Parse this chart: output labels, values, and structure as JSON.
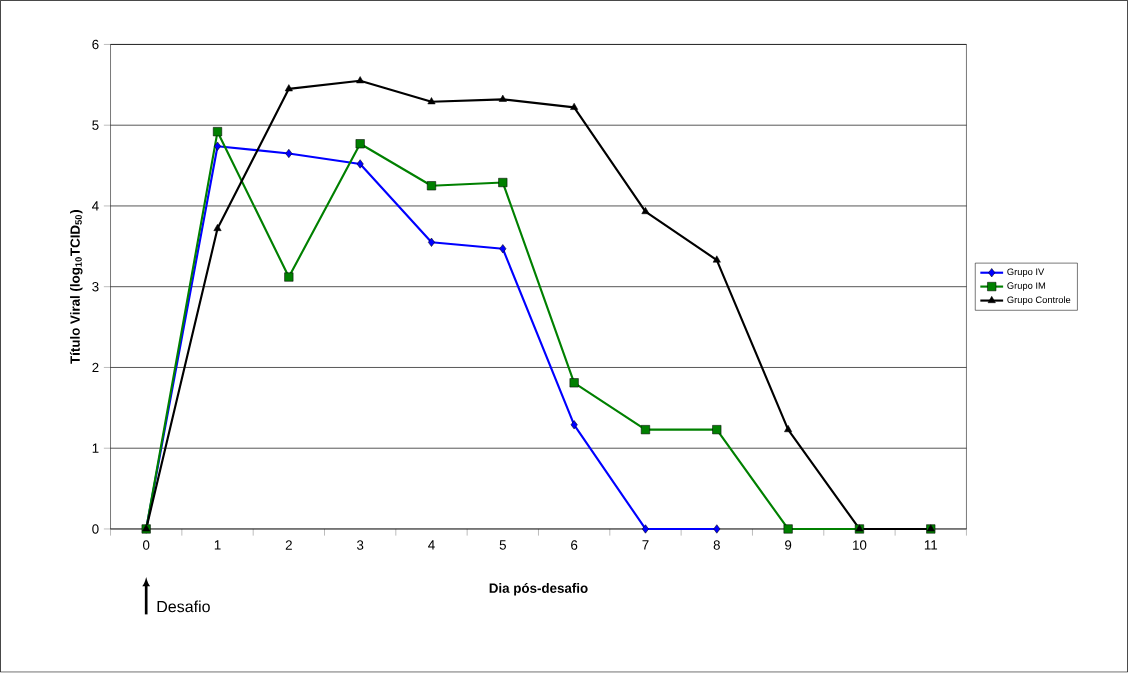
{
  "chart_data": {
    "type": "line",
    "xlabel": "Dia pós-desafio",
    "ylabel": "Título Viral (log$_{10}$TCID$_{50}$)",
    "categories": [
      "0",
      "1",
      "2",
      "3",
      "4",
      "5",
      "6",
      "7",
      "8",
      "9",
      "10",
      "11"
    ],
    "series": [
      {
        "name": "Grupo IV",
        "color": "#0000ff",
        "marker": "diamond",
        "values": [
          0,
          4.74,
          4.65,
          4.52,
          3.55,
          3.47,
          1.29,
          0,
          0,
          null,
          null,
          null
        ]
      },
      {
        "name": "Grupo IM",
        "color": "#008000",
        "marker": "square",
        "values": [
          0,
          4.92,
          3.12,
          4.77,
          4.25,
          4.29,
          1.81,
          1.23,
          1.23,
          0,
          0,
          0
        ]
      },
      {
        "name": "Grupo Controle",
        "color": "#000000",
        "marker": "triangle",
        "values": [
          0,
          3.72,
          5.45,
          5.55,
          5.29,
          5.32,
          5.22,
          3.93,
          3.33,
          1.23,
          0,
          0
        ]
      }
    ],
    "ylim": [
      0,
      6
    ],
    "yticks": [
      0,
      1,
      2,
      3,
      4,
      5,
      6
    ],
    "grid": "y",
    "legend": "right",
    "line_style": "solid",
    "annotations": [
      "Desafio"
    ]
  }
}
